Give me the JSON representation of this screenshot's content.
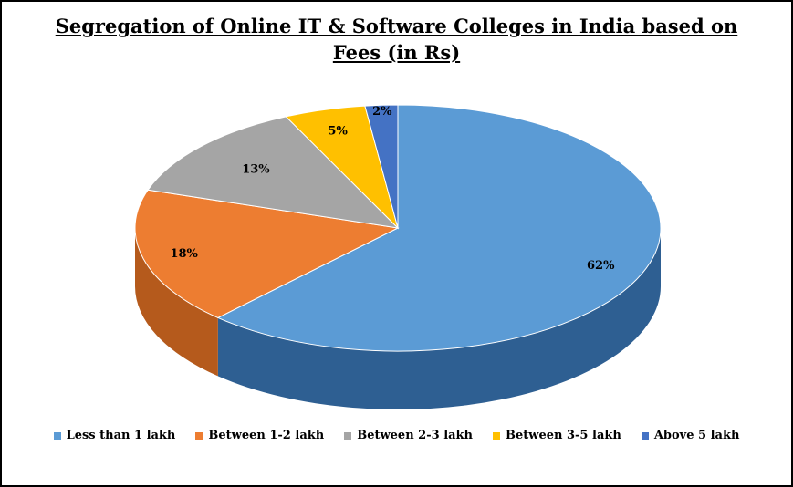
{
  "chart_data": {
    "type": "pie",
    "title_line1": "Segregation of Online IT & Software Colleges in India based on",
    "title_line2": "Fees (in Rs)",
    "categories": [
      "Less than 1 lakh",
      "Between 1-2 lakh",
      "Between 2-3 lakh",
      "Between 3-5 lakh",
      "Above 5 lakh"
    ],
    "values": [
      62,
      18,
      13,
      5,
      2
    ],
    "data_labels": [
      "62%",
      "18%",
      "13%",
      "5%",
      "2%"
    ],
    "colors": [
      "#5b9bd5",
      "#ed7d31",
      "#a5a5a5",
      "#ffc000",
      "#4472c4"
    ],
    "side_colors": [
      "#2e5f92",
      "#b55a1c",
      "#7a7a7a",
      "#c49100",
      "#2b4f8e"
    ],
    "legend_position": "bottom",
    "style": "3d"
  }
}
